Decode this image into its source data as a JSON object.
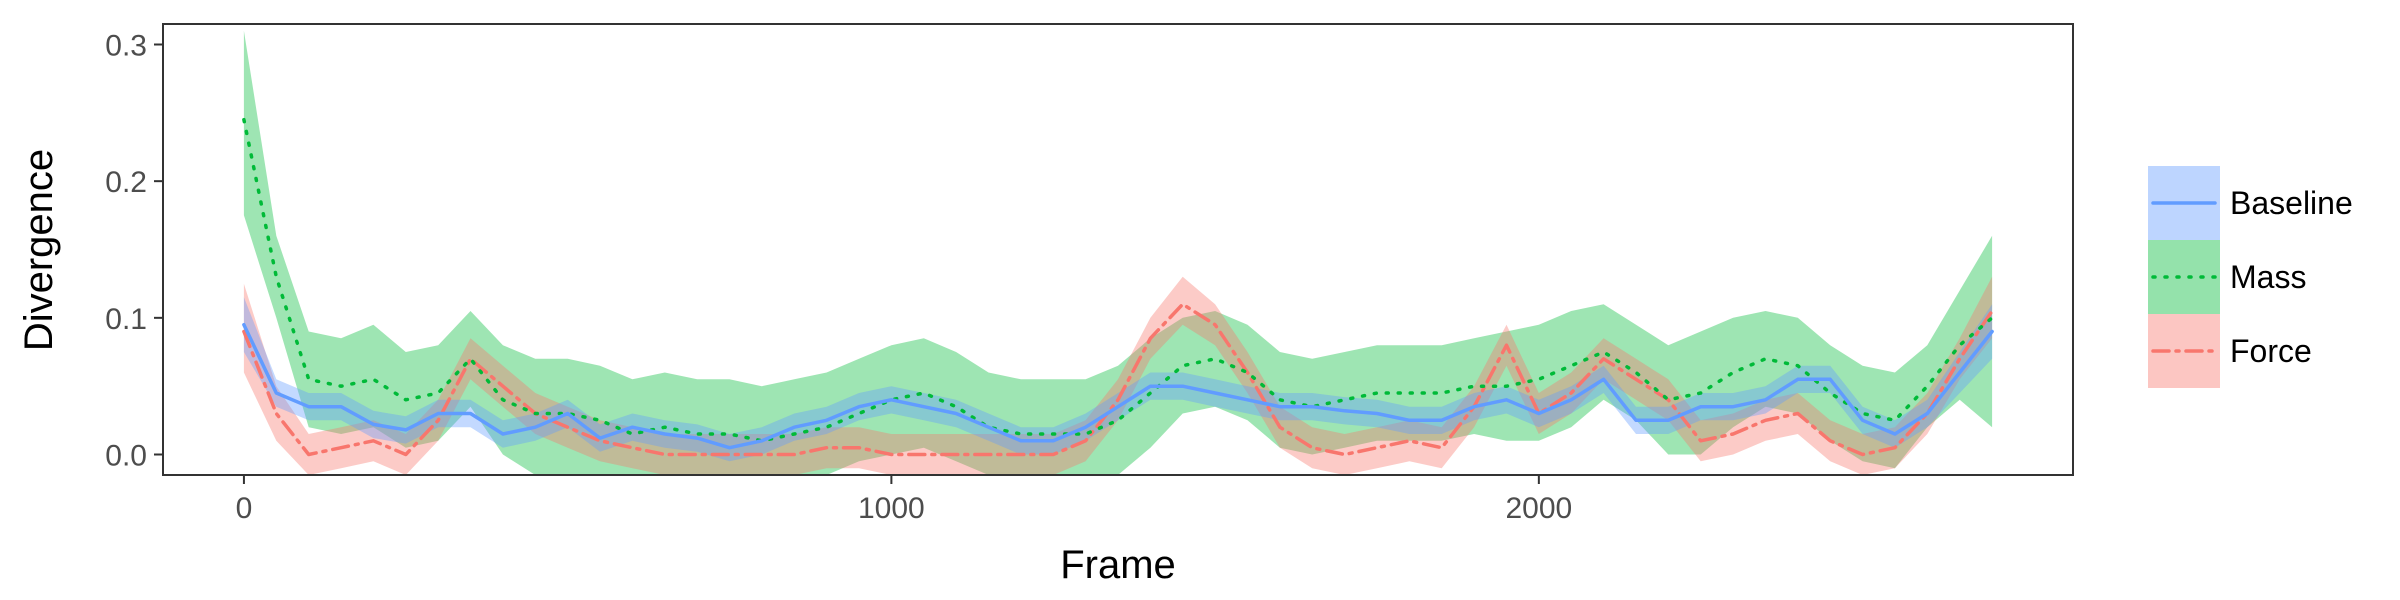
{
  "chart_data": {
    "type": "line",
    "title": "",
    "xlabel": "Frame",
    "ylabel": "Divergence",
    "xlim": [
      -125,
      2825
    ],
    "ylim": [
      -0.015,
      0.315
    ],
    "xticks": [
      0,
      1000,
      2000
    ],
    "xtick_labels": [
      "0",
      "1000",
      "2000"
    ],
    "yticks": [
      0.0,
      0.1,
      0.2,
      0.3
    ],
    "ytick_labels": [
      "0.0",
      "0.1",
      "0.2",
      "0.3"
    ],
    "grid": false,
    "legend_position": "right",
    "x": [
      0,
      50,
      100,
      150,
      200,
      250,
      300,
      350,
      400,
      450,
      500,
      550,
      600,
      650,
      700,
      750,
      800,
      850,
      900,
      950,
      1000,
      1050,
      1100,
      1150,
      1200,
      1250,
      1300,
      1350,
      1400,
      1450,
      1500,
      1550,
      1600,
      1650,
      1700,
      1750,
      1800,
      1850,
      1900,
      1950,
      2000,
      2050,
      2100,
      2150,
      2200,
      2250,
      2300,
      2350,
      2400,
      2450,
      2500,
      2550,
      2600,
      2650,
      2700
    ],
    "series": [
      {
        "name": "Baseline",
        "color": "#619cff",
        "line_style": "solid",
        "values": [
          0.095,
          0.045,
          0.035,
          0.035,
          0.022,
          0.018,
          0.03,
          0.03,
          0.015,
          0.02,
          0.03,
          0.012,
          0.02,
          0.015,
          0.012,
          0.005,
          0.01,
          0.02,
          0.025,
          0.035,
          0.04,
          0.035,
          0.03,
          0.02,
          0.01,
          0.01,
          0.02,
          0.035,
          0.05,
          0.05,
          0.045,
          0.04,
          0.035,
          0.035,
          0.032,
          0.03,
          0.025,
          0.025,
          0.035,
          0.04,
          0.03,
          0.04,
          0.055,
          0.025,
          0.025,
          0.035,
          0.035,
          0.04,
          0.055,
          0.055,
          0.025,
          0.015,
          0.03,
          0.06,
          0.09
        ],
        "lower": [
          0.075,
          0.035,
          0.025,
          0.025,
          0.012,
          0.008,
          0.02,
          0.02,
          0.005,
          0.01,
          0.02,
          0.002,
          0.01,
          0.005,
          0.002,
          -0.005,
          0.0,
          0.01,
          0.015,
          0.025,
          0.03,
          0.025,
          0.02,
          0.01,
          0.0,
          0.0,
          0.01,
          0.025,
          0.04,
          0.04,
          0.035,
          0.03,
          0.025,
          0.025,
          0.022,
          0.02,
          0.015,
          0.015,
          0.025,
          0.03,
          0.02,
          0.03,
          0.045,
          0.015,
          0.015,
          0.025,
          0.025,
          0.03,
          0.045,
          0.045,
          0.015,
          0.005,
          0.02,
          0.045,
          0.07
        ],
        "upper": [
          0.115,
          0.055,
          0.045,
          0.045,
          0.032,
          0.028,
          0.04,
          0.04,
          0.025,
          0.03,
          0.04,
          0.022,
          0.03,
          0.025,
          0.022,
          0.015,
          0.02,
          0.03,
          0.035,
          0.045,
          0.05,
          0.045,
          0.04,
          0.03,
          0.02,
          0.02,
          0.03,
          0.045,
          0.06,
          0.06,
          0.055,
          0.05,
          0.045,
          0.045,
          0.042,
          0.04,
          0.035,
          0.035,
          0.045,
          0.05,
          0.04,
          0.05,
          0.065,
          0.035,
          0.035,
          0.045,
          0.045,
          0.05,
          0.065,
          0.065,
          0.035,
          0.025,
          0.04,
          0.075,
          0.11
        ]
      },
      {
        "name": "Mass",
        "color": "#00ba38",
        "line_style": "dotted",
        "values": [
          0.245,
          0.13,
          0.055,
          0.05,
          0.055,
          0.04,
          0.045,
          0.07,
          0.04,
          0.03,
          0.03,
          0.025,
          0.015,
          0.02,
          0.015,
          0.015,
          0.01,
          0.015,
          0.02,
          0.03,
          0.04,
          0.045,
          0.035,
          0.02,
          0.015,
          0.015,
          0.015,
          0.025,
          0.045,
          0.065,
          0.07,
          0.06,
          0.04,
          0.035,
          0.04,
          0.045,
          0.045,
          0.045,
          0.05,
          0.05,
          0.055,
          0.065,
          0.075,
          0.06,
          0.04,
          0.045,
          0.06,
          0.07,
          0.065,
          0.045,
          0.03,
          0.025,
          0.05,
          0.08,
          0.1
        ],
        "lower": [
          0.175,
          0.1,
          0.02,
          0.015,
          0.02,
          0.005,
          0.01,
          0.035,
          0.0,
          -0.015,
          -0.015,
          -0.02,
          -0.03,
          -0.025,
          -0.025,
          -0.025,
          -0.025,
          -0.02,
          -0.015,
          -0.005,
          0.0,
          0.005,
          -0.005,
          -0.02,
          -0.025,
          -0.025,
          -0.025,
          -0.015,
          0.005,
          0.03,
          0.035,
          0.025,
          0.005,
          0.0,
          0.005,
          0.01,
          0.01,
          0.01,
          0.015,
          0.01,
          0.01,
          0.02,
          0.04,
          0.025,
          0.0,
          0.0,
          0.02,
          0.035,
          0.03,
          0.01,
          -0.005,
          -0.01,
          0.02,
          0.04,
          0.02
        ],
        "upper": [
          0.31,
          0.16,
          0.09,
          0.085,
          0.095,
          0.075,
          0.08,
          0.105,
          0.08,
          0.07,
          0.07,
          0.065,
          0.055,
          0.06,
          0.055,
          0.055,
          0.05,
          0.055,
          0.06,
          0.07,
          0.08,
          0.085,
          0.075,
          0.06,
          0.055,
          0.055,
          0.055,
          0.065,
          0.085,
          0.1,
          0.105,
          0.095,
          0.075,
          0.07,
          0.075,
          0.08,
          0.08,
          0.08,
          0.085,
          0.09,
          0.095,
          0.105,
          0.11,
          0.095,
          0.08,
          0.09,
          0.1,
          0.105,
          0.1,
          0.08,
          0.065,
          0.06,
          0.08,
          0.12,
          0.16
        ]
      },
      {
        "name": "Force",
        "color": "#f8766d",
        "line_style": "dashdot",
        "values": [
          0.09,
          0.03,
          0.0,
          0.005,
          0.01,
          0.0,
          0.025,
          0.07,
          0.05,
          0.03,
          0.02,
          0.01,
          0.005,
          0.0,
          0.0,
          0.0,
          0.0,
          0.0,
          0.005,
          0.005,
          0.0,
          0.0,
          0.0,
          0.0,
          0.0,
          0.0,
          0.01,
          0.04,
          0.085,
          0.11,
          0.095,
          0.06,
          0.02,
          0.005,
          0.0,
          0.005,
          0.01,
          0.005,
          0.035,
          0.08,
          0.03,
          0.045,
          0.07,
          0.055,
          0.04,
          0.01,
          0.015,
          0.025,
          0.03,
          0.01,
          0.0,
          0.005,
          0.03,
          0.07,
          0.105
        ],
        "lower": [
          0.06,
          0.01,
          -0.015,
          -0.01,
          -0.005,
          -0.015,
          0.01,
          0.055,
          0.035,
          0.015,
          0.005,
          -0.005,
          -0.01,
          -0.015,
          -0.015,
          -0.015,
          -0.015,
          -0.015,
          -0.01,
          -0.01,
          -0.015,
          -0.015,
          -0.015,
          -0.015,
          -0.015,
          -0.015,
          -0.005,
          0.025,
          0.07,
          0.095,
          0.08,
          0.045,
          0.005,
          -0.01,
          -0.015,
          -0.01,
          -0.005,
          -0.01,
          0.02,
          0.065,
          0.015,
          0.03,
          0.055,
          0.04,
          0.025,
          -0.005,
          0.0,
          0.01,
          0.015,
          -0.005,
          -0.015,
          -0.01,
          0.015,
          0.055,
          0.085
        ],
        "upper": [
          0.125,
          0.05,
          0.015,
          0.02,
          0.025,
          0.015,
          0.04,
          0.085,
          0.065,
          0.045,
          0.035,
          0.025,
          0.02,
          0.015,
          0.015,
          0.015,
          0.015,
          0.015,
          0.02,
          0.02,
          0.015,
          0.015,
          0.015,
          0.015,
          0.015,
          0.015,
          0.025,
          0.055,
          0.1,
          0.13,
          0.11,
          0.075,
          0.035,
          0.02,
          0.015,
          0.02,
          0.025,
          0.02,
          0.05,
          0.095,
          0.045,
          0.06,
          0.085,
          0.07,
          0.055,
          0.025,
          0.03,
          0.04,
          0.045,
          0.025,
          0.015,
          0.02,
          0.045,
          0.085,
          0.13
        ]
      }
    ]
  }
}
